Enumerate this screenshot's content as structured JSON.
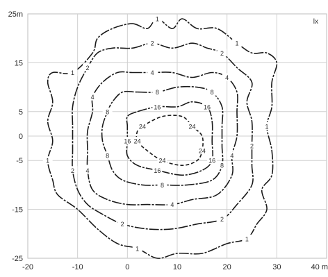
{
  "chart_data": {
    "type": "contour",
    "unit_label": "lx",
    "x_ticks": [
      "-20",
      "-10",
      "0",
      "10",
      "20",
      "30",
      "40 m"
    ],
    "x_tick_values": [
      -20,
      -10,
      0,
      10,
      20,
      30,
      40
    ],
    "y_ticks": [
      "25m",
      "15",
      "5",
      "0",
      "-5",
      "-15",
      "-25"
    ],
    "y_tick_values": [
      25,
      15,
      5,
      0,
      -5,
      -15,
      -25
    ],
    "xlim": [
      -20,
      40
    ],
    "ylim": [
      -25,
      25
    ],
    "grid": true,
    "contours": [
      {
        "level": "1",
        "points": [
          [
            1,
            23
          ],
          [
            4,
            22
          ],
          [
            6,
            24
          ],
          [
            9,
            22
          ],
          [
            11,
            24
          ],
          [
            14,
            22
          ],
          [
            18,
            22
          ],
          [
            22,
            19
          ],
          [
            25,
            17
          ],
          [
            28,
            17
          ],
          [
            30,
            15
          ],
          [
            29,
            11
          ],
          [
            29,
            6
          ],
          [
            28,
            2
          ],
          [
            29,
            -3
          ],
          [
            29,
            -8
          ],
          [
            27,
            -11
          ],
          [
            28,
            -15
          ],
          [
            26,
            -18
          ],
          [
            24,
            -21
          ],
          [
            20,
            -22
          ],
          [
            15,
            -24
          ],
          [
            10,
            -24
          ],
          [
            6,
            -25
          ],
          [
            2,
            -23
          ],
          [
            -2,
            -22
          ],
          [
            -6,
            -19
          ],
          [
            -10,
            -15
          ],
          [
            -14,
            -12
          ],
          [
            -15,
            -9
          ],
          [
            -16,
            -5
          ],
          [
            -15,
            -1
          ],
          [
            -16,
            3
          ],
          [
            -15,
            7
          ],
          [
            -16,
            11
          ],
          [
            -15,
            13
          ],
          [
            -11,
            13
          ],
          [
            -7,
            17
          ],
          [
            -6,
            20
          ],
          [
            -3,
            22
          ]
        ]
      },
      {
        "level": "2",
        "points": [
          [
            1,
            18
          ],
          [
            5,
            19
          ],
          [
            9,
            18
          ],
          [
            13,
            19
          ],
          [
            16,
            18
          ],
          [
            19,
            17
          ],
          [
            22,
            14
          ],
          [
            25,
            11
          ],
          [
            24,
            7
          ],
          [
            25,
            3
          ],
          [
            25,
            -2
          ],
          [
            25,
            -6
          ],
          [
            25,
            -10
          ],
          [
            22,
            -14
          ],
          [
            19,
            -17
          ],
          [
            14,
            -18
          ],
          [
            9,
            -19
          ],
          [
            4,
            -19
          ],
          [
            -1,
            -18
          ],
          [
            -5,
            -16
          ],
          [
            -8,
            -14
          ],
          [
            -10,
            -11
          ],
          [
            -11,
            -7
          ],
          [
            -11,
            -3
          ],
          [
            -11,
            2
          ],
          [
            -11,
            6
          ],
          [
            -10,
            10
          ],
          [
            -8,
            14
          ],
          [
            -6,
            17
          ],
          [
            -3,
            18
          ]
        ]
      },
      {
        "level": "4",
        "points": [
          [
            1,
            13
          ],
          [
            5,
            13
          ],
          [
            9,
            13
          ],
          [
            13,
            12
          ],
          [
            17,
            13
          ],
          [
            20,
            12
          ],
          [
            22,
            9
          ],
          [
            22,
            5
          ],
          [
            22,
            0
          ],
          [
            21,
            -4
          ],
          [
            21,
            -8
          ],
          [
            18,
            -12
          ],
          [
            13,
            -13
          ],
          [
            9,
            -14
          ],
          [
            4,
            -14
          ],
          [
            0,
            -14
          ],
          [
            -4,
            -13
          ],
          [
            -7,
            -11
          ],
          [
            -8,
            -7
          ],
          [
            -8,
            -3
          ],
          [
            -8,
            1
          ],
          [
            -7,
            5
          ],
          [
            -7,
            8
          ],
          [
            -5,
            11
          ],
          [
            -2,
            13
          ]
        ]
      },
      {
        "level": "8",
        "points": [
          [
            2,
            9
          ],
          [
            6,
            9
          ],
          [
            10,
            10
          ],
          [
            14,
            10
          ],
          [
            17,
            9
          ],
          [
            19,
            6
          ],
          [
            19,
            2
          ],
          [
            19,
            -2
          ],
          [
            19,
            -6
          ],
          [
            17,
            -9
          ],
          [
            12,
            -10
          ],
          [
            7,
            -10
          ],
          [
            3,
            -10
          ],
          [
            -1,
            -9
          ],
          [
            -3,
            -7
          ],
          [
            -4,
            -4
          ],
          [
            -5,
            -1
          ],
          [
            -5,
            2
          ],
          [
            -4,
            5
          ],
          [
            -3,
            7
          ],
          [
            -1,
            9
          ]
        ]
      },
      {
        "level": "16",
        "points": [
          [
            2,
            5
          ],
          [
            6,
            6
          ],
          [
            10,
            6
          ],
          [
            13,
            7
          ],
          [
            16,
            6
          ],
          [
            17,
            3
          ],
          [
            17,
            -1
          ],
          [
            17,
            -5
          ],
          [
            15,
            -7
          ],
          [
            11,
            -8
          ],
          [
            6,
            -7
          ],
          [
            2,
            -6
          ],
          [
            0,
            -4
          ],
          [
            0,
            -1
          ],
          [
            0,
            2
          ],
          [
            0,
            4
          ]
        ]
      },
      {
        "level": "24",
        "points": [
          [
            3,
            2
          ],
          [
            7,
            4
          ],
          [
            11,
            4
          ],
          [
            13,
            2
          ],
          [
            15,
            0
          ],
          [
            15,
            -3
          ],
          [
            14,
            -5
          ],
          [
            11,
            -6
          ],
          [
            7,
            -5
          ],
          [
            4,
            -3
          ],
          [
            2,
            -1
          ],
          [
            2,
            1
          ]
        ]
      }
    ]
  }
}
